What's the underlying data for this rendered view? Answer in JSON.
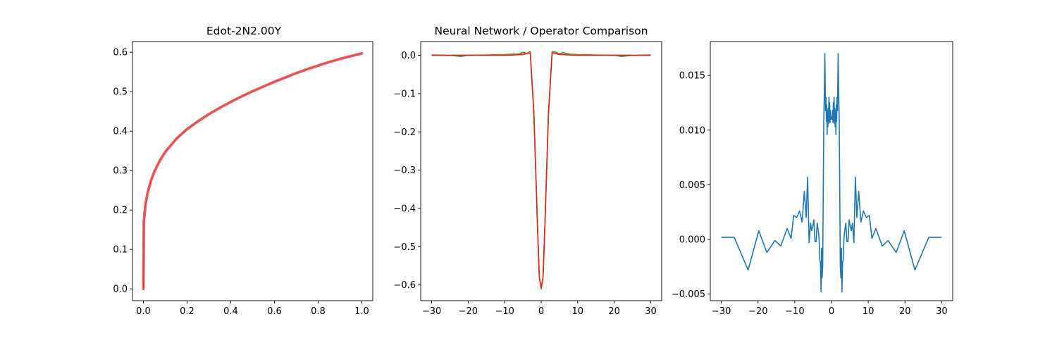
{
  "chart_data": [
    {
      "type": "line",
      "title": "Edot-2N2.00Y",
      "xlabel": "",
      "ylabel": "",
      "xlim": [
        -0.05,
        1.05
      ],
      "ylim": [
        -0.03,
        0.627
      ],
      "xticks": [
        0.0,
        0.2,
        0.4,
        0.6,
        0.8,
        1.0
      ],
      "xtick_labels": [
        "0.0",
        "0.2",
        "0.4",
        "0.6",
        "0.8",
        "1.0"
      ],
      "yticks": [
        0.0,
        0.1,
        0.2,
        0.3,
        0.4,
        0.5,
        0.6
      ],
      "ytick_labels": [
        "0.0",
        "0.1",
        "0.2",
        "0.3",
        "0.4",
        "0.5",
        "0.6"
      ],
      "grid": false,
      "colors": {
        "bold": "#e86b6b",
        "thin": "#d62728"
      },
      "series": [
        {
          "x": [
            0.0,
            0.002,
            0.005,
            0.01,
            0.02,
            0.035,
            0.05,
            0.075,
            0.1,
            0.15,
            0.2,
            0.25,
            0.3,
            0.35,
            0.4,
            0.45,
            0.5,
            0.55,
            0.6,
            0.65,
            0.7,
            0.75,
            0.8,
            0.85,
            0.9,
            0.95,
            1.0
          ],
          "y": [
            0.0,
            0.17,
            0.19,
            0.215,
            0.245,
            0.275,
            0.297,
            0.325,
            0.347,
            0.38,
            0.405,
            0.425,
            0.443,
            0.459,
            0.474,
            0.488,
            0.501,
            0.513,
            0.525,
            0.536,
            0.547,
            0.557,
            0.566,
            0.575,
            0.583,
            0.59,
            0.597
          ]
        }
      ]
    },
    {
      "type": "line",
      "title": "Neural Network / Operator Comparison",
      "xlabel": "",
      "ylabel": "",
      "xlim": [
        -33,
        33
      ],
      "ylim": [
        -0.641,
        0.036
      ],
      "xticks": [
        -30,
        -20,
        -10,
        0,
        10,
        20,
        30
      ],
      "xtick_labels": [
        "−30",
        "−20",
        "−10",
        "0",
        "10",
        "20",
        "30"
      ],
      "yticks": [
        0.0,
        -0.1,
        -0.2,
        -0.3,
        -0.4,
        -0.5,
        -0.6
      ],
      "ytick_labels": [
        "0.0",
        "−0.1",
        "−0.2",
        "−0.3",
        "−0.4",
        "−0.5",
        "−0.6"
      ],
      "grid": false,
      "series": [
        {
          "color": "#2ca02c",
          "x": [
            -30,
            -25,
            -22,
            -20,
            -15,
            -10,
            -8,
            -6,
            -5,
            -4,
            -3,
            -2,
            -1,
            -0.5,
            0,
            0.5,
            1,
            2,
            3,
            4,
            5,
            6,
            8,
            10,
            15,
            20,
            22,
            25,
            30
          ],
          "y": [
            0.001,
            0.0,
            -0.003,
            0.0,
            0.001,
            0.002,
            0.003,
            0.004,
            0.008,
            0.005,
            0.01,
            -0.15,
            -0.45,
            -0.58,
            -0.61,
            -0.58,
            -0.45,
            -0.15,
            0.01,
            0.008,
            0.004,
            0.007,
            0.003,
            0.002,
            0.001,
            0.0,
            -0.003,
            0.0,
            0.001
          ]
        },
        {
          "color": "#ff7f0e",
          "x": [
            -30,
            -20,
            -10,
            -5,
            -3,
            -2,
            -1,
            -0.5,
            0,
            0.5,
            1,
            2,
            3,
            5,
            10,
            20,
            30
          ],
          "y": [
            0.0,
            0.0,
            0.001,
            0.003,
            0.008,
            -0.15,
            -0.45,
            -0.58,
            -0.608,
            -0.58,
            -0.45,
            -0.15,
            0.008,
            0.003,
            0.001,
            0.0,
            0.0
          ]
        },
        {
          "color": "#d62728",
          "x": [
            -30,
            -20,
            -10,
            -5,
            -3,
            -2,
            -1,
            -0.5,
            0,
            0.5,
            1,
            2,
            3,
            5,
            10,
            20,
            30
          ],
          "y": [
            0.0,
            0.0,
            0.0,
            0.002,
            0.007,
            -0.15,
            -0.45,
            -0.58,
            -0.608,
            -0.58,
            -0.45,
            -0.15,
            0.007,
            0.002,
            0.0,
            0.0,
            0.0
          ]
        }
      ]
    },
    {
      "type": "line",
      "title": "",
      "xlabel": "",
      "ylabel": "",
      "xlim": [
        -33,
        33
      ],
      "ylim": [
        -0.0056,
        0.0181
      ],
      "xticks": [
        -30,
        -20,
        -10,
        0,
        10,
        20,
        30
      ],
      "xtick_labels": [
        "−30",
        "−20",
        "−10",
        "0",
        "10",
        "20",
        "30"
      ],
      "yticks": [
        -0.005,
        0.0,
        0.005,
        0.01,
        0.015
      ],
      "ytick_labels": [
        "−0.005",
        "0.000",
        "0.005",
        "0.010",
        "0.015"
      ],
      "grid": false,
      "series": [
        {
          "color": "#1f77b4",
          "x": [
            -30,
            -26.5,
            -22.7,
            -19.8,
            -17.6,
            -15.4,
            -13.8,
            -12.1,
            -11,
            -10.3,
            -9.5,
            -8.7,
            -8.0,
            -7.4,
            -6.9,
            -6.5,
            -6.1,
            -5.7,
            -5.4,
            -5.1,
            -4.8,
            -4.5,
            -4.2,
            -3.9,
            -3.6,
            -3.4,
            -3.2,
            -3.0,
            -2.85,
            -2.7,
            -2.55,
            -2.4,
            -2.25,
            -2.1,
            -1.95,
            -1.8,
            -1.65,
            -1.5,
            -1.4,
            -1.3,
            -1.2,
            -1.1,
            -1.0,
            -0.9,
            -0.8,
            -0.7,
            -0.6,
            -0.5,
            -0.4,
            -0.3,
            -0.2,
            -0.1,
            0.0,
            0.1,
            0.2,
            0.3,
            0.4,
            0.5,
            0.6,
            0.7,
            0.8,
            0.9,
            1.0,
            1.1,
            1.2,
            1.3,
            1.4,
            1.5,
            1.65,
            1.8,
            1.95,
            2.1,
            2.25,
            2.4,
            2.55,
            2.7,
            2.85,
            3.0,
            3.2,
            3.4,
            3.6,
            3.9,
            4.2,
            4.5,
            4.8,
            5.1,
            5.4,
            5.7,
            6.1,
            6.5,
            6.9,
            7.4,
            8.0,
            8.7,
            9.5,
            10.3,
            11,
            12.1,
            13.8,
            15.4,
            17.6,
            19.8,
            22.7,
            26.5,
            30
          ],
          "y": [
            0.0002,
            0.0002,
            -0.0028,
            0.0008,
            -0.0012,
            -0.0001,
            -0.0006,
            0.001,
            0.0001,
            0.0022,
            0.002,
            0.0026,
            0.0016,
            0.0044,
            0.002,
            0.0057,
            -0.0003,
            0.0015,
            0.0008,
            0.0012,
            0.0018,
            -0.0002,
            -0.0002,
            0.0015,
            0.0008,
            0.0002,
            -0.0018,
            -0.0022,
            -0.0048,
            -0.0008,
            -0.0035,
            -0.0025,
            0.0041,
            0.011,
            0.0135,
            0.017,
            0.0118,
            0.013,
            0.0108,
            0.0123,
            0.0096,
            0.0118,
            0.0103,
            0.012,
            0.0106,
            0.013,
            0.0108,
            0.0125,
            0.0107,
            0.0118,
            0.0112,
            0.011,
            0.0112,
            0.011,
            0.0112,
            0.0118,
            0.0107,
            0.0125,
            0.0108,
            0.013,
            0.0106,
            0.012,
            0.0103,
            0.0118,
            0.0096,
            0.0123,
            0.0108,
            0.013,
            0.0118,
            0.017,
            0.0135,
            0.011,
            0.0041,
            -0.0025,
            -0.0035,
            -0.0008,
            -0.0048,
            -0.0022,
            -0.0018,
            0.0002,
            0.0008,
            0.0015,
            -0.0002,
            -0.0002,
            0.0018,
            0.0012,
            0.0008,
            0.0015,
            -0.0003,
            0.0057,
            0.002,
            0.0044,
            0.0016,
            0.0026,
            0.002,
            0.0022,
            0.0001,
            0.001,
            -0.0006,
            -0.0001,
            -0.0012,
            0.0008,
            -0.0028,
            0.0002,
            0.0002
          ]
        }
      ]
    }
  ]
}
